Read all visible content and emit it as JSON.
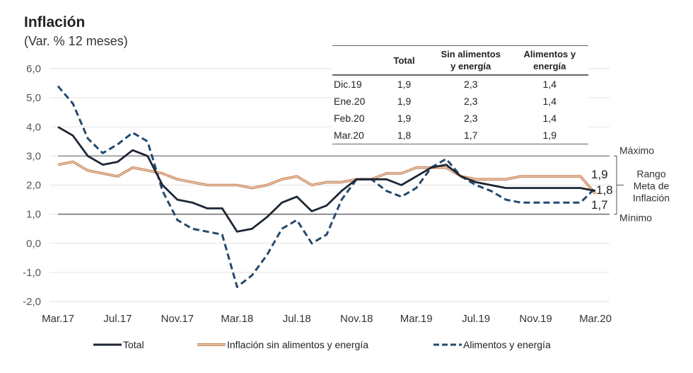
{
  "header": {
    "title": "Inflación",
    "subtitle": "(Var. % 12 meses)"
  },
  "table": {
    "columns": [
      "",
      "Total",
      "Sin alimentos y energía",
      "Alimentos y energía"
    ],
    "column_lines": [
      [
        "",
        ""
      ],
      [
        "Total",
        ""
      ],
      [
        "Sin alimentos",
        "y energía"
      ],
      [
        "Alimentos y",
        "energía"
      ]
    ],
    "rows": [
      [
        "Dic.19",
        "1,9",
        "2,3",
        "1,4"
      ],
      [
        "Ene.20",
        "1,9",
        "2,3",
        "1,4"
      ],
      [
        "Feb.20",
        "1,9",
        "2,3",
        "1,4"
      ],
      [
        "Mar.20",
        "1,8",
        "1,7",
        "1,9"
      ]
    ]
  },
  "target_range": {
    "max_label": "Máximo",
    "min_label": "Mínimo",
    "range_label_lines": [
      "Rango",
      "Meta de",
      "Inflación"
    ],
    "max": 3.0,
    "min": 1.0
  },
  "end_labels": [
    "1,9",
    "1,8",
    "1,7"
  ],
  "chart_data": {
    "type": "line",
    "title": "Inflación",
    "subtitle": "(Var. % 12 meses)",
    "xlabel": "",
    "ylabel": "",
    "ylim": [
      -2.0,
      6.0
    ],
    "yticks": [
      6.0,
      5.0,
      4.0,
      3.0,
      2.0,
      1.0,
      0.0,
      -1.0,
      -2.0
    ],
    "ytick_labels": [
      "6,0",
      "5,0",
      "4,0",
      "3,0",
      "2,0",
      "1,0",
      "0,0",
      "-1,0",
      "-2,0"
    ],
    "x": [
      "Mar.17",
      "Abr.17",
      "May.17",
      "Jun.17",
      "Jul.17",
      "Ago.17",
      "Sep.17",
      "Oct.17",
      "Nov.17",
      "Dic.17",
      "Ene.18",
      "Feb.18",
      "Mar.18",
      "Abr.18",
      "May.18",
      "Jun.18",
      "Jul.18",
      "Ago.18",
      "Sep.18",
      "Oct.18",
      "Nov.18",
      "Dic.18",
      "Ene.19",
      "Feb.19",
      "Mar.19",
      "Abr.19",
      "May.19",
      "Jun.19",
      "Jul.19",
      "Ago.19",
      "Sep.19",
      "Oct.19",
      "Nov.19",
      "Dic.19",
      "Ene.20",
      "Feb.20",
      "Mar.20"
    ],
    "xtick_labels": [
      "Mar.17",
      "Jul.17",
      "Nov.17",
      "Mar.18",
      "Jul.18",
      "Nov.18",
      "Mar.19",
      "Jul.19",
      "Nov.19",
      "Mar.20"
    ],
    "xtick_indices": [
      0,
      4,
      8,
      12,
      16,
      20,
      24,
      28,
      32,
      36
    ],
    "grid": true,
    "legend_position": "bottom",
    "series": [
      {
        "name": "Total",
        "color": "#1c2533",
        "style": "solid",
        "values": [
          4.0,
          3.7,
          3.0,
          2.7,
          2.8,
          3.2,
          3.0,
          2.0,
          1.5,
          1.4,
          1.2,
          1.2,
          0.4,
          0.5,
          0.9,
          1.4,
          1.6,
          1.1,
          1.3,
          1.8,
          2.2,
          2.2,
          2.2,
          2.0,
          2.3,
          2.6,
          2.7,
          2.3,
          2.1,
          2.0,
          1.9,
          1.9,
          1.9,
          1.9,
          1.9,
          1.9,
          1.8
        ]
      },
      {
        "name": "Inflación sin alimentos y energía",
        "color": "#c8875a",
        "style": "double",
        "values": [
          2.7,
          2.8,
          2.5,
          2.4,
          2.3,
          2.6,
          2.5,
          2.4,
          2.2,
          2.1,
          2.0,
          2.0,
          2.0,
          1.9,
          2.0,
          2.2,
          2.3,
          2.0,
          2.1,
          2.1,
          2.2,
          2.2,
          2.4,
          2.4,
          2.6,
          2.6,
          2.6,
          2.3,
          2.2,
          2.2,
          2.2,
          2.3,
          2.3,
          2.3,
          2.3,
          2.3,
          1.7
        ]
      },
      {
        "name": "Alimentos y energía",
        "color": "#24496e",
        "style": "dashed",
        "values": [
          5.4,
          4.8,
          3.6,
          3.1,
          3.4,
          3.8,
          3.5,
          1.8,
          0.8,
          0.5,
          0.4,
          0.3,
          -1.5,
          -1.1,
          -0.4,
          0.5,
          0.8,
          0.0,
          0.3,
          1.5,
          2.2,
          2.2,
          1.8,
          1.6,
          1.9,
          2.6,
          2.9,
          2.3,
          2.0,
          1.8,
          1.5,
          1.4,
          1.4,
          1.4,
          1.4,
          1.4,
          1.9
        ]
      }
    ]
  }
}
